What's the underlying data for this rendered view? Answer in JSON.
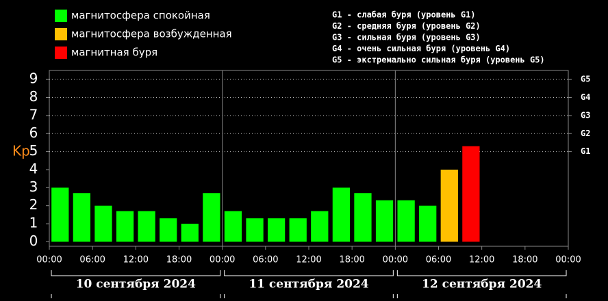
{
  "chart_data": {
    "type": "bar",
    "ylabel": "Kp",
    "legend": [
      {
        "label": "магнитосфера спокойная",
        "color": "#00ff00"
      },
      {
        "label": "магнитосфера возбужденная",
        "color": "#ffc000"
      },
      {
        "label": "магнитная буря",
        "color": "#ff0000"
      }
    ],
    "storm_scale": [
      "G1 - слабая буря (уровень G1)",
      "G2 - средняя буря (уровень G2)",
      "G3 - сильная буря (уровень G3)",
      "G4 - очень сильная буря (уровень G4)",
      "G5 - экстремально сильная буря (уровень G5)"
    ],
    "x": [
      1.5,
      4.5,
      7.5,
      10.5,
      13.5,
      16.5,
      19.5,
      22.5,
      25.5,
      28.5,
      31.5,
      34.5,
      37.5,
      40.5,
      43.5,
      46.5,
      49.5,
      52.5,
      55.5,
      58.5
    ],
    "values": [
      3.0,
      2.7,
      2.0,
      1.7,
      1.7,
      1.3,
      1.0,
      2.7,
      1.7,
      1.3,
      1.3,
      1.3,
      1.7,
      3.0,
      2.7,
      2.3,
      2.3,
      2.0,
      4.0,
      5.3
    ],
    "colors": [
      "#00ff00",
      "#00ff00",
      "#00ff00",
      "#00ff00",
      "#00ff00",
      "#00ff00",
      "#00ff00",
      "#00ff00",
      "#00ff00",
      "#00ff00",
      "#00ff00",
      "#00ff00",
      "#00ff00",
      "#00ff00",
      "#00ff00",
      "#00ff00",
      "#00ff00",
      "#00ff00",
      "#ffc000",
      "#ff0000"
    ],
    "xlim": [
      0,
      72
    ],
    "xticks": [
      {
        "value": 0,
        "label": "00:00"
      },
      {
        "value": 6,
        "label": "06:00"
      },
      {
        "value": 12,
        "label": "12:00"
      },
      {
        "value": 18,
        "label": "18:00"
      },
      {
        "value": 24,
        "label": "00:00"
      },
      {
        "value": 30,
        "label": "06:00"
      },
      {
        "value": 36,
        "label": "12:00"
      },
      {
        "value": 42,
        "label": "18:00"
      },
      {
        "value": 48,
        "label": "00:00"
      },
      {
        "value": 54,
        "label": "06:00"
      },
      {
        "value": 60,
        "label": "12:00"
      },
      {
        "value": 66,
        "label": "18:00"
      },
      {
        "value": 72,
        "label": "00:00"
      }
    ],
    "ylim": [
      -0.25,
      9.5
    ],
    "yticks": [
      0,
      1,
      2,
      3,
      4,
      5,
      6,
      7,
      8,
      9
    ],
    "y2ticks": [
      {
        "value": 5,
        "label": "G1"
      },
      {
        "value": 6,
        "label": "G2"
      },
      {
        "value": 7,
        "label": "G3"
      },
      {
        "value": 8,
        "label": "G4"
      },
      {
        "value": 9,
        "label": "G5"
      }
    ],
    "days": [
      {
        "label": "10 сентября 2024",
        "from": 0,
        "to": 24
      },
      {
        "label": "11 сентября 2024",
        "from": 24,
        "to": 48
      },
      {
        "label": "12 сентября 2024",
        "from": 48,
        "to": 72
      }
    ]
  }
}
